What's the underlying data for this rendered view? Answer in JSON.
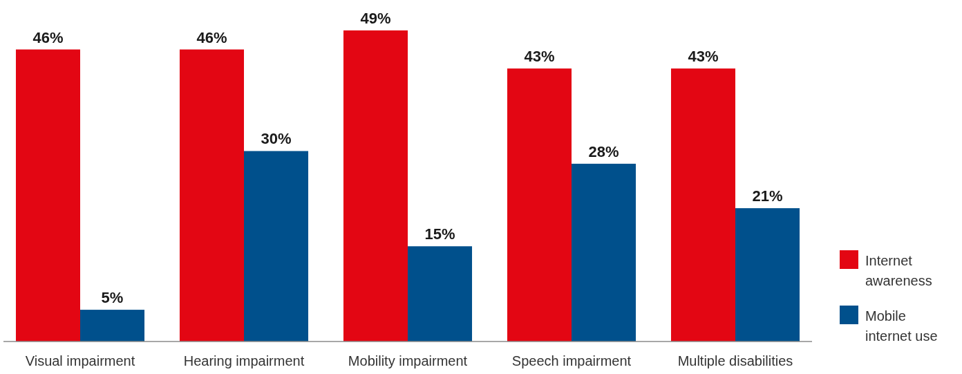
{
  "chart_data": {
    "type": "bar",
    "categories": [
      "Visual impairment",
      "Hearing impairment",
      "Mobility impairment",
      "Speech impairment",
      "Multiple disabilities"
    ],
    "series": [
      {
        "name": "Internet awareness",
        "color": "#e30613",
        "values": [
          46,
          46,
          49,
          43,
          43
        ],
        "value_labels": [
          "46%",
          "46%",
          "49%",
          "43%",
          "43%"
        ]
      },
      {
        "name": "Mobile internet use",
        "color": "#00508c",
        "values": [
          5,
          30,
          15,
          28,
          21
        ],
        "value_labels": [
          "5%",
          "30%",
          "15%",
          "28%",
          "21%"
        ]
      }
    ],
    "legend": "right"
  }
}
